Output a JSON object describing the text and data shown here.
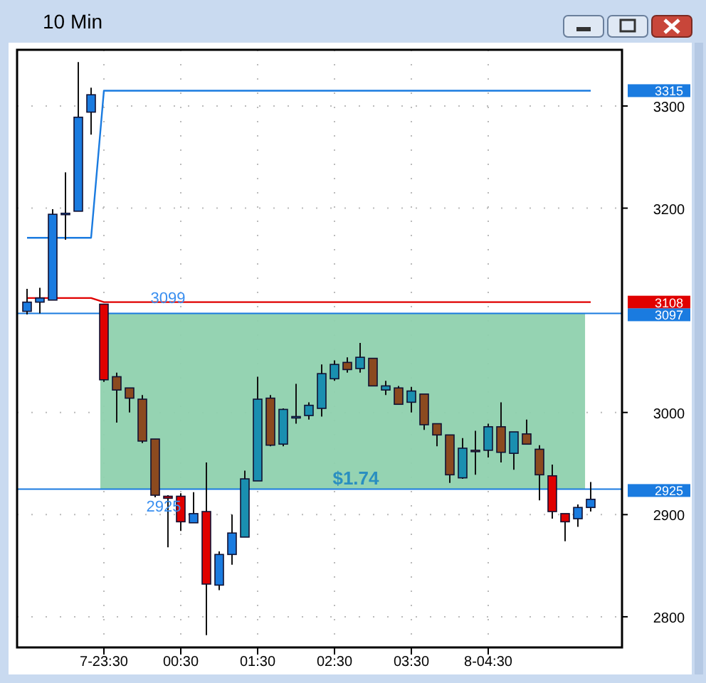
{
  "chart_data": {
    "type": "candlestick",
    "title": "10 Min",
    "categories": [
      null,
      null,
      null,
      null,
      null,
      null,
      "7-23:30",
      null,
      null,
      null,
      null,
      null,
      "00:30",
      null,
      null,
      null,
      null,
      null,
      "01:30",
      null,
      null,
      null,
      null,
      null,
      "02:30",
      null,
      null,
      null,
      null,
      null,
      "03:30",
      null,
      null,
      null,
      null,
      null,
      "8-04:30",
      null,
      null,
      null,
      null,
      null,
      null,
      null,
      null
    ],
    "ohlc": [
      [
        3099,
        3121,
        3096,
        3108
      ],
      [
        3108,
        3122,
        3097,
        3112
      ],
      [
        3110,
        3199,
        3110,
        3194
      ],
      [
        3194,
        3235,
        3169,
        3195
      ],
      [
        3197,
        3343,
        3197,
        3289
      ],
      [
        3294,
        3318,
        3272,
        3311
      ],
      [
        3106,
        3106,
        3030,
        3032
      ],
      [
        3035,
        3039,
        2990,
        3022
      ],
      [
        3024,
        3024,
        3000,
        3014
      ],
      [
        3013,
        3017,
        2970,
        2972
      ],
      [
        2974,
        2974,
        2917,
        2919
      ],
      [
        2918,
        2919,
        2868,
        2916
      ],
      [
        2918,
        2921,
        2884,
        2893
      ],
      [
        2892,
        2922,
        2892,
        2901
      ],
      [
        2903,
        2951,
        2782,
        2832
      ],
      [
        2831,
        2864,
        2826,
        2861
      ],
      [
        2861,
        2900,
        2851,
        2882
      ],
      [
        2878,
        2943,
        2878,
        2935
      ],
      [
        2933,
        3035,
        2933,
        3013
      ],
      [
        3014,
        3017,
        2967,
        2968
      ],
      [
        2969,
        3004,
        2967,
        3003
      ],
      [
        2995,
        3028,
        2989,
        2996
      ],
      [
        2997,
        3010,
        2993,
        3007
      ],
      [
        3004,
        3047,
        2996,
        3038
      ],
      [
        3033,
        3051,
        3031,
        3047
      ],
      [
        3049,
        3054,
        3039,
        3042
      ],
      [
        3043,
        3068,
        3039,
        3054
      ],
      [
        3053,
        3053,
        3026,
        3026
      ],
      [
        3022,
        3031,
        3017,
        3026
      ],
      [
        3024,
        3026,
        3008,
        3008
      ],
      [
        3010,
        3025,
        3000,
        3021
      ],
      [
        3018,
        3018,
        2983,
        2988
      ],
      [
        2989,
        2989,
        2967,
        2978
      ],
      [
        2978,
        2978,
        2931,
        2939
      ],
      [
        2936,
        2975,
        2935,
        2965
      ],
      [
        2963,
        2982,
        2939,
        2962
      ],
      [
        2963,
        2989,
        2956,
        2986
      ],
      [
        2986,
        3010,
        2951,
        2961
      ],
      [
        2960,
        2981,
        2944,
        2981
      ],
      [
        2979,
        2993,
        2969,
        2969
      ],
      [
        2964,
        2968,
        2914,
        2939
      ],
      [
        2938,
        2949,
        2896,
        2903
      ],
      [
        2901,
        2901,
        2874,
        2893
      ],
      [
        2896,
        2910,
        2888,
        2907
      ],
      [
        2907,
        2932,
        2903,
        2915
      ]
    ],
    "colors": [
      "#1a7be0",
      "#1a7be0",
      "#1a7be0",
      "#1a7be0",
      "#1a7be0",
      "#1a7be0",
      "#e00000",
      "#8b4a1f",
      "#8b4a1f",
      "#8b4a1f",
      "#8b4a1f",
      "#e00000",
      "#e00000",
      "#1a7be0",
      "#e00000",
      "#1a7be0",
      "#1a7be0",
      "#1a8fb0",
      "#1a8fb0",
      "#8b4a1f",
      "#1a8fb0",
      "#1a8fb0",
      "#1a8fb0",
      "#1a8fb0",
      "#1a8fb0",
      "#8b4a1f",
      "#1a8fb0",
      "#8b4a1f",
      "#1a8fb0",
      "#8b4a1f",
      "#1a8fb0",
      "#8b4a1f",
      "#8b4a1f",
      "#8b4a1f",
      "#1a8fb0",
      "#8b4a1f",
      "#1a8fb0",
      "#8b4a1f",
      "#1a8fb0",
      "#8b4a1f",
      "#8b4a1f",
      "#e00000",
      "#e00000",
      "#1a7be0",
      "#1a7be0"
    ],
    "series": [
      {
        "type": "line",
        "color": "#e00000",
        "values": [
          3112,
          3112,
          3112,
          3112,
          3112,
          3112,
          3108,
          3108,
          3108,
          3108,
          3108,
          3108,
          3108,
          3108,
          3108,
          3108,
          3108,
          3108,
          3108,
          3108,
          3108,
          3108,
          3108,
          3108,
          3108,
          3108,
          3108,
          3108,
          3108,
          3108,
          3108,
          3108,
          3108,
          3108,
          3108,
          3108,
          3108,
          3108,
          3108,
          3108,
          3108,
          3108,
          3108,
          3108,
          3108
        ]
      },
      {
        "type": "line",
        "color": "#1a7be0",
        "values": [
          3171,
          3171,
          3171,
          3171,
          3171,
          3171,
          3315,
          3315,
          3315,
          3315,
          3315,
          3315,
          3315,
          3315,
          3315,
          3315,
          3315,
          3315,
          3315,
          3315,
          3315,
          3315,
          3315,
          3315,
          3315,
          3315,
          3315,
          3315,
          3315,
          3315,
          3315,
          3315,
          3315,
          3315,
          3315,
          3315,
          3315,
          3315,
          3315,
          3315,
          3315,
          3315,
          3315,
          3315,
          3315
        ]
      }
    ],
    "ylim": [
      2770,
      3355
    ],
    "yticks": [
      2800,
      2900,
      3000,
      3200,
      3300
    ],
    "grid": true,
    "ref_lines": [
      {
        "axis": "y",
        "value": 3097,
        "label": "3097",
        "color": "#1a7be0"
      },
      {
        "axis": "y",
        "value": 2925,
        "label": "2925",
        "color": "#1a7be0"
      }
    ],
    "bands": [
      {
        "axis": "y",
        "from": 2925,
        "to": 3097,
        "color": "#8fd1ae"
      }
    ],
    "annotations": [
      "3315",
      "3108",
      {
        "text": "3099",
        "y": 3097
      },
      {
        "text": "2925",
        "y": 2925
      },
      {
        "text": "$1.74",
        "y": 2925
      }
    ]
  }
}
